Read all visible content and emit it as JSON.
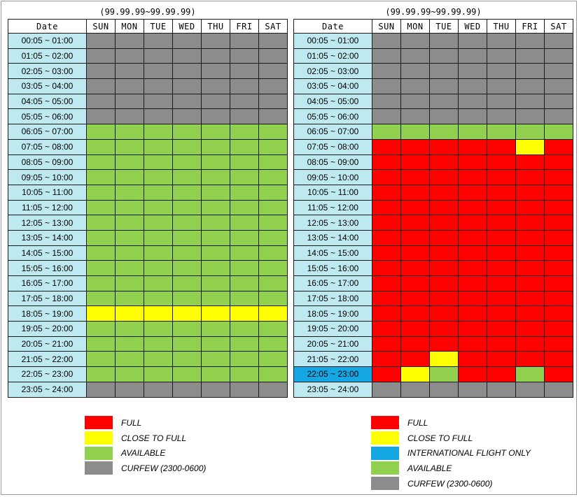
{
  "colors": {
    "F": "#ff0000",
    "C": "#ffff00",
    "A": "#92d050",
    "X": "#8c8c8c",
    "I": "#14a7e3"
  },
  "headers": {
    "date": "Date",
    "days": [
      "SUN",
      "MON",
      "TUE",
      "WED",
      "THU",
      "FRI",
      "SAT"
    ]
  },
  "time_slots": [
    "00:05 ~ 01:00",
    "01:05 ~ 02:00",
    "02:05 ~ 03:00",
    "03:05 ~ 04:00",
    "04:05 ~ 05:00",
    "05:05 ~ 06:00",
    "06:05 ~ 07:00",
    "07:05 ~ 08:00",
    "08:05 ~ 09:00",
    "09:05 ~ 10:00",
    "10:05 ~ 11:00",
    "11:05 ~ 12:00",
    "12:05 ~ 13:00",
    "13:05 ~ 14:00",
    "14:05 ~ 15:00",
    "15:05 ~ 16:00",
    "16:05 ~ 17:00",
    "17:05 ~ 18:00",
    "18:05 ~ 19:00",
    "19:05 ~ 20:00",
    "20:05 ~ 21:00",
    "21:05 ~ 22:00",
    "22:05 ~ 23:00",
    "23:05 ~ 24:00"
  ],
  "left_panel": {
    "date_range": "(99.99.99~99.99.99)",
    "status_grid": [
      "XXXXXXX",
      "XXXXXXX",
      "XXXXXXX",
      "XXXXXXX",
      "XXXXXXX",
      "XXXXXXX",
      "AAAAAAA",
      "AAAAAAA",
      "AAAAAAA",
      "AAAAAAA",
      "AAAAAAA",
      "AAAAAAA",
      "AAAAAAA",
      "AAAAAAA",
      "AAAAAAA",
      "AAAAAAA",
      "AAAAAAA",
      "AAAAAAA",
      "CCCCCCC",
      "AAAAAAA",
      "AAAAAAA",
      "AAAAAAA",
      "AAAAAAA",
      "XXXXXXX"
    ],
    "legend": [
      {
        "key": "F",
        "label": "FULL"
      },
      {
        "key": "C",
        "label": "CLOSE TO FULL"
      },
      {
        "key": "A",
        "label": "AVAILABLE"
      },
      {
        "key": "X",
        "label": "CURFEW (2300-0600)"
      }
    ]
  },
  "right_panel": {
    "date_range": "(99.99.99~99.99.99)",
    "intl_slot_index": 22,
    "status_grid": [
      "XXXXXXX",
      "XXXXXXX",
      "XXXXXXX",
      "XXXXXXX",
      "XXXXXXX",
      "XXXXXXX",
      "AAAAAAA",
      "FFFFFCF",
      "FFFFFFF",
      "FFFFFFF",
      "FFFFFFF",
      "FFFFFFF",
      "FFFFFFF",
      "FFFFFFF",
      "FFFFFFF",
      "FFFFFFF",
      "FFFFFFF",
      "FFFFFFF",
      "FFFFFFF",
      "FFFFFFF",
      "FFFFFFF",
      "FFCFFFF",
      "FCAFFAF",
      "XXXXXXX"
    ],
    "legend": [
      {
        "key": "F",
        "label": "FULL"
      },
      {
        "key": "C",
        "label": "CLOSE TO FULL"
      },
      {
        "key": "I",
        "label": "INTERNATIONAL FLIGHT ONLY"
      },
      {
        "key": "A",
        "label": "AVAILABLE"
      },
      {
        "key": "X",
        "label": "CURFEW (2300-0600)"
      }
    ]
  }
}
